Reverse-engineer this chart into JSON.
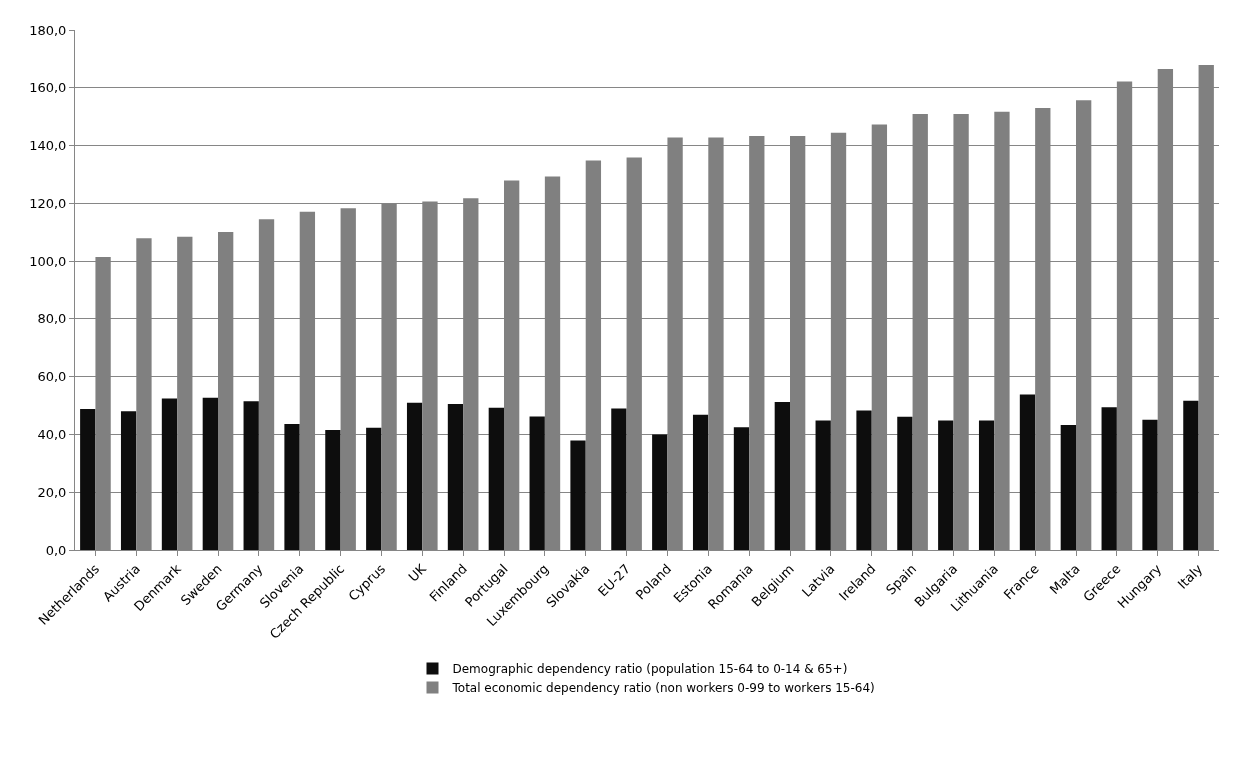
{
  "chart_data": {
    "type": "bar",
    "categories": [
      "Netherlands",
      "Austria",
      "Denmark",
      "Sweden",
      "Germany",
      "Slovenia",
      "Czech Republic",
      "Cyprus",
      "UK",
      "Finland",
      "Portugal",
      "Luxembourg",
      "Slovakia",
      "EU-27",
      "Poland",
      "Estonia",
      "Romania",
      "Belgium",
      "Latvia",
      "Ireland",
      "Spain",
      "Bulgaria",
      "Lithuania",
      "France",
      "Malta",
      "Greece",
      "Hungary",
      "Italy"
    ],
    "series": [
      {
        "name": "Demographic dependency ratio (population 15-64 to 0-14 & 65+)",
        "color": "#0d0d0d",
        "values": [
          48.8,
          48.0,
          52.4,
          52.7,
          51.5,
          43.6,
          41.5,
          42.3,
          51.0,
          50.5,
          49.2,
          46.2,
          37.9,
          49.0,
          40.0,
          46.8,
          42.5,
          51.2,
          44.8,
          48.3,
          46.1,
          44.8,
          44.8,
          53.8,
          43.3,
          49.4,
          45.1,
          51.7
        ]
      },
      {
        "name": "Total economic dependency ratio (non workers 0-99 to workers 15-64)",
        "color": "#808080",
        "values": [
          101.4,
          107.9,
          108.4,
          110.1,
          114.5,
          117.1,
          118.3,
          119.9,
          120.6,
          121.8,
          127.9,
          129.3,
          134.8,
          135.9,
          142.8,
          142.8,
          143.3,
          143.3,
          144.4,
          147.3,
          150.9,
          150.9,
          151.7,
          153.0,
          155.7,
          162.2,
          166.5,
          167.9
        ]
      }
    ],
    "ylim": [
      0,
      180
    ],
    "yticks": [
      {
        "value": 0,
        "label": "0,0"
      },
      {
        "value": 20,
        "label": "20,0"
      },
      {
        "value": 40,
        "label": "40,0"
      },
      {
        "value": 60,
        "label": "60,0"
      },
      {
        "value": 80,
        "label": "80,0"
      },
      {
        "value": 100,
        "label": "100,0"
      },
      {
        "value": 120,
        "label": "120,0"
      },
      {
        "value": 140,
        "label": "140,0"
      },
      {
        "value": 160,
        "label": "160,0"
      },
      {
        "value": 180,
        "label": "180,0"
      }
    ],
    "grid": "y",
    "legend": "bottom"
  }
}
